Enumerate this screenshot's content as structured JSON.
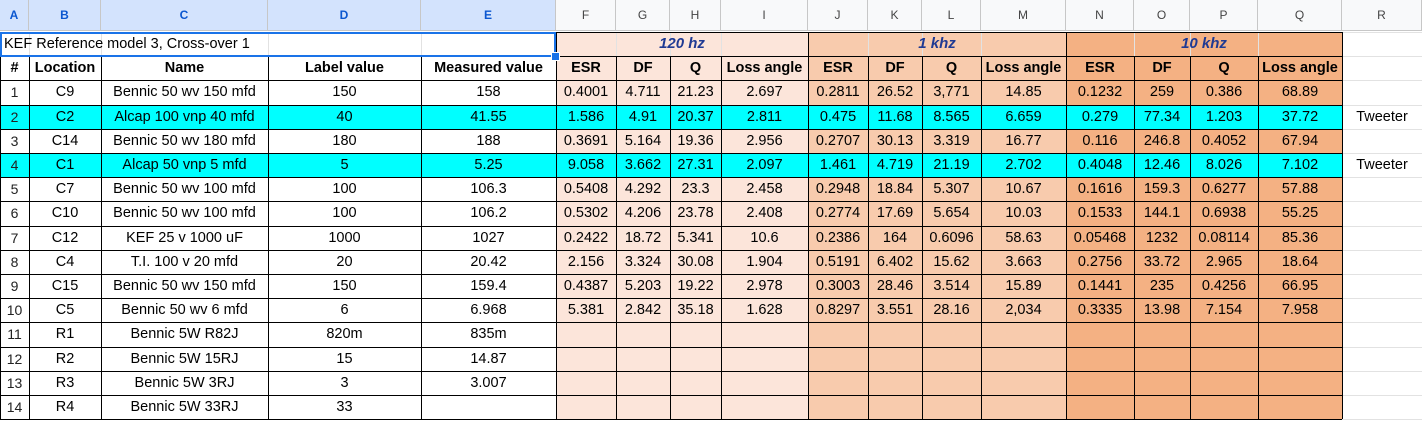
{
  "columns": [
    {
      "letter": "A"
    },
    {
      "letter": "B"
    },
    {
      "letter": "C"
    },
    {
      "letter": "D"
    },
    {
      "letter": "E"
    },
    {
      "letter": "F"
    },
    {
      "letter": "G"
    },
    {
      "letter": "H"
    },
    {
      "letter": "I"
    },
    {
      "letter": "J"
    },
    {
      "letter": "K"
    },
    {
      "letter": "L"
    },
    {
      "letter": "M"
    },
    {
      "letter": "N"
    },
    {
      "letter": "O"
    },
    {
      "letter": "P"
    },
    {
      "letter": "Q"
    },
    {
      "letter": "R"
    }
  ],
  "selected_columns": [
    "A",
    "B",
    "C",
    "D",
    "E"
  ],
  "title": "KEF Reference model 3, Cross-over 1",
  "bands": [
    {
      "label": "120 hz",
      "color": "#fce5da"
    },
    {
      "label": "1 khz",
      "color": "#f8cbad"
    },
    {
      "label": "10 khz",
      "color": "#f4b183"
    }
  ],
  "headers": [
    "#",
    "Location",
    "Name",
    "Label value",
    "Measured value",
    "ESR",
    "DF",
    "Q",
    "Loss angle",
    "ESR",
    "DF",
    "Q",
    "Loss angle",
    "ESR",
    "DF",
    "Q",
    "Loss angle"
  ],
  "highlight_color": "#00ffff",
  "rows": [
    {
      "highlight": false,
      "cells": [
        "1",
        "C9",
        "Bennic 50 wv 150 mfd",
        "150",
        "158",
        "0.4001",
        "4.711",
        "21.23",
        "2.697",
        "0.2811",
        "26.52",
        "3,771",
        "14.85",
        "0.1232",
        "259",
        "0.386",
        "68.89"
      ],
      "note": ""
    },
    {
      "highlight": true,
      "cells": [
        "2",
        "C2",
        "Alcap 100 vnp 40 mfd",
        "40",
        "41.55",
        "1.586",
        "4.91",
        "20.37",
        "2.811",
        "0.475",
        "11.68",
        "8.565",
        "6.659",
        "0.279",
        "77.34",
        "1.203",
        "37.72"
      ],
      "note": "Tweeter"
    },
    {
      "highlight": false,
      "cells": [
        "3",
        "C14",
        "Bennic 50 wv 180 mfd",
        "180",
        "188",
        "0.3691",
        "5.164",
        "19.36",
        "2.956",
        "0.2707",
        "30.13",
        "3.319",
        "16.77",
        "0.116",
        "246.8",
        "0.4052",
        "67.94"
      ],
      "note": ""
    },
    {
      "highlight": true,
      "cells": [
        "4",
        "C1",
        "Alcap 50 vnp 5 mfd",
        "5",
        "5.25",
        "9.058",
        "3.662",
        "27.31",
        "2.097",
        "1.461",
        "4.719",
        "21.19",
        "2.702",
        "0.4048",
        "12.46",
        "8.026",
        "7.102"
      ],
      "note": "Tweeter"
    },
    {
      "highlight": false,
      "cells": [
        "5",
        "C7",
        "Bennic 50 wv 100 mfd",
        "100",
        "106.3",
        "0.5408",
        "4.292",
        "23.3",
        "2.458",
        "0.2948",
        "18.84",
        "5.307",
        "10.67",
        "0.1616",
        "159.3",
        "0.6277",
        "57.88"
      ],
      "note": ""
    },
    {
      "highlight": false,
      "cells": [
        "6",
        "C10",
        "Bennic 50 wv 100 mfd",
        "100",
        "106.2",
        "0.5302",
        "4.206",
        "23.78",
        "2.408",
        "0.2774",
        "17.69",
        "5.654",
        "10.03",
        "0.1533",
        "144.1",
        "0.6938",
        "55.25"
      ],
      "note": ""
    },
    {
      "highlight": false,
      "cells": [
        "7",
        "C12",
        "KEF 25 v 1000 uF",
        "1000",
        "1027",
        "0.2422",
        "18.72",
        "5.341",
        "10.6",
        "0.2386",
        "164",
        "0.6096",
        "58.63",
        "0.05468",
        "1232",
        "0.08114",
        "85.36"
      ],
      "note": ""
    },
    {
      "highlight": false,
      "cells": [
        "8",
        "C4",
        "T.I. 100 v 20 mfd",
        "20",
        "20.42",
        "2.156",
        "3.324",
        "30.08",
        "1.904",
        "0.5191",
        "6.402",
        "15.62",
        "3.663",
        "0.2756",
        "33.72",
        "2.965",
        "18.64"
      ],
      "note": ""
    },
    {
      "highlight": false,
      "cells": [
        "9",
        "C15",
        "Bennic 50 wv 150 mfd",
        "150",
        "159.4",
        "0.4387",
        "5.203",
        "19.22",
        "2.978",
        "0.3003",
        "28.46",
        "3.514",
        "15.89",
        "0.1441",
        "235",
        "0.4256",
        "66.95"
      ],
      "note": ""
    },
    {
      "highlight": false,
      "cells": [
        "10",
        "C5",
        "Bennic 50 wv 6 mfd",
        "6",
        "6.968",
        "5.381",
        "2.842",
        "35.18",
        "1.628",
        "0.8297",
        "3.551",
        "28.16",
        "2,034",
        "0.3335",
        "13.98",
        "7.154",
        "7.958"
      ],
      "note": ""
    },
    {
      "highlight": false,
      "cells": [
        "11",
        "R1",
        "Bennic 5W R82J",
        "820m",
        "835m",
        "",
        "",
        "",
        "",
        "",
        "",
        "",
        "",
        "",
        "",
        "",
        ""
      ],
      "note": ""
    },
    {
      "highlight": false,
      "cells": [
        "12",
        "R2",
        "Bennic 5W 15RJ",
        "15",
        "14.87",
        "",
        "",
        "",
        "",
        "",
        "",
        "",
        "",
        "",
        "",
        "",
        ""
      ],
      "note": ""
    },
    {
      "highlight": false,
      "cells": [
        "13",
        "R3",
        "Bennic 5W 3RJ",
        "3",
        "3.007",
        "",
        "",
        "",
        "",
        "",
        "",
        "",
        "",
        "",
        "",
        "",
        ""
      ],
      "note": ""
    },
    {
      "highlight": false,
      "cells": [
        "14",
        "R4",
        "Bennic 5W 33RJ",
        "33",
        "",
        "",
        "",
        "",
        "",
        "",
        "",
        "",
        "",
        "",
        "",
        "",
        ""
      ],
      "note": ""
    }
  ]
}
